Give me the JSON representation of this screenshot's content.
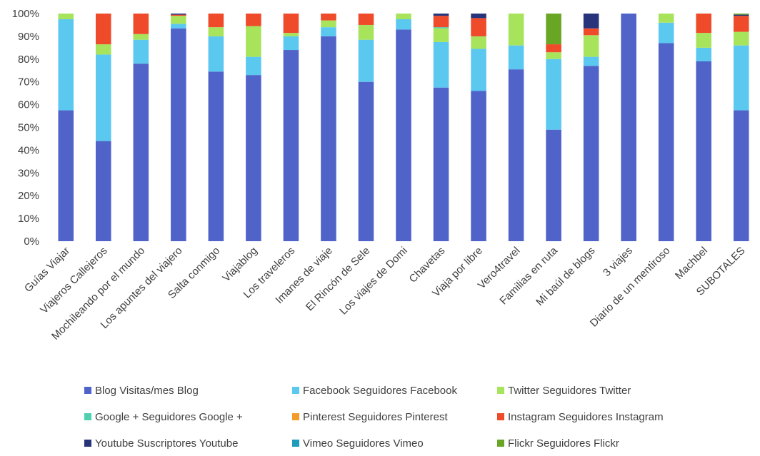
{
  "chart_data": {
    "type": "bar",
    "stacked": "percent",
    "title": "",
    "xlabel": "",
    "ylabel": "",
    "ylim": [
      0,
      100
    ],
    "y_ticks": [
      "0%",
      "10%",
      "20%",
      "30%",
      "40%",
      "50%",
      "60%",
      "70%",
      "80%",
      "90%",
      "100%"
    ],
    "grid": false,
    "legend_position": "bottom",
    "categories": [
      "Guías Viajar",
      "Viajeros Callejeros",
      "Mochileando por el mundo",
      "Los apuntes del viajero",
      "Salta conmigo",
      "Viajablog",
      "Los traveleros",
      "Imanes de viaje",
      "El Rincón de Sele",
      "Los viajes de Domi",
      "Chavetas",
      "Viaja por libre",
      "Vero4travel",
      "Familias en ruta",
      "Mi baúl de blogs",
      "3 viajes",
      "Diario de un mentiroso",
      "Machbel",
      "SUBOTALES"
    ],
    "series": [
      {
        "name": "Blog Visitas/mes Blog",
        "color": "#4f63c9",
        "values": [
          57.5,
          44,
          78,
          93.5,
          74.5,
          73,
          84,
          90,
          70,
          93,
          67.5,
          66,
          75.5,
          49,
          77,
          100,
          87,
          79,
          57.5
        ]
      },
      {
        "name": "Facebook Seguidores Facebook",
        "color": "#5bc8f0",
        "values": [
          40,
          38,
          10.5,
          2,
          15.5,
          8,
          6,
          4,
          18.5,
          4.5,
          20,
          18.5,
          10.5,
          31,
          4,
          0,
          9,
          6,
          28.5
        ]
      },
      {
        "name": "Twitter Seguidores Twitter",
        "color": "#a8e35c",
        "values": [
          2.5,
          4.5,
          2.5,
          3.5,
          4,
          13.5,
          1.5,
          3,
          6.5,
          2.5,
          6,
          5.5,
          14,
          3,
          9.5,
          0,
          4,
          6.5,
          6
        ]
      },
      {
        "name": "Google + Seguidores Google +",
        "color": "#4fd1b0",
        "values": [
          0,
          0,
          0,
          0,
          0,
          0,
          0,
          0,
          0,
          0,
          0.5,
          0,
          0,
          0,
          0,
          0,
          0,
          0,
          0
        ]
      },
      {
        "name": "Pinterest Seguidores Pinterest",
        "color": "#f39c2a",
        "values": [
          0,
          0,
          0,
          0,
          0,
          0,
          0,
          0,
          0,
          0,
          0,
          0,
          0,
          0,
          0,
          0,
          0,
          0,
          0
        ]
      },
      {
        "name": "Instagram Seguidores Instagram",
        "color": "#ef4a2a",
        "values": [
          0,
          13.5,
          9,
          0.5,
          6,
          5.5,
          8.5,
          3,
          5,
          0,
          5,
          8,
          0,
          3.5,
          3,
          0,
          0,
          8.5,
          7
        ]
      },
      {
        "name": "Youtube Suscriptores Youtube",
        "color": "#27337a",
        "values": [
          0,
          0,
          0,
          0.5,
          0,
          0,
          0,
          0,
          0,
          0,
          1,
          2,
          0,
          0,
          6.5,
          0,
          0,
          0,
          0.5
        ]
      },
      {
        "name": "Vimeo Seguidores Vimeo",
        "color": "#1e9bbd",
        "values": [
          0,
          0,
          0,
          0,
          0,
          0,
          0,
          0,
          0,
          0,
          0,
          0,
          0,
          0,
          0,
          0,
          0,
          0,
          0
        ]
      },
      {
        "name": "Flickr Seguidores Flickr",
        "color": "#6aa626",
        "values": [
          0,
          0,
          0,
          0,
          0,
          0,
          0,
          0,
          0,
          0,
          0,
          0,
          0,
          13.5,
          0,
          0,
          0,
          0,
          0.5
        ]
      }
    ]
  }
}
